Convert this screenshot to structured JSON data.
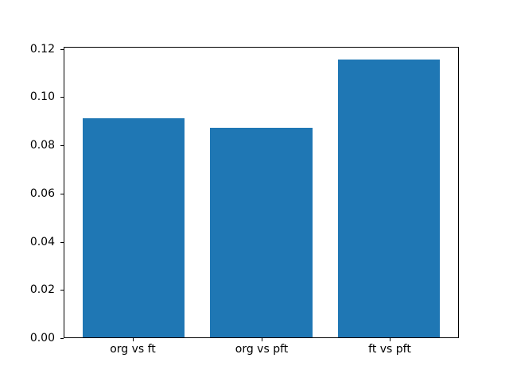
{
  "chart_data": {
    "type": "bar",
    "title": "",
    "xlabel": "",
    "ylabel": "",
    "categories": [
      "org vs ft",
      "org vs pft",
      "ft vs pft"
    ],
    "values": [
      0.0912,
      0.0872,
      0.1156
    ],
    "yticks": [
      0.0,
      0.02,
      0.04,
      0.06,
      0.08,
      0.1,
      0.12
    ],
    "ytick_labels": [
      "0.00",
      "0.02",
      "0.04",
      "0.06",
      "0.08",
      "0.10",
      "0.12"
    ],
    "ylim": [
      0,
      0.1205
    ],
    "grid": false,
    "legend": false,
    "bar_color": "#1f77b4",
    "background_color": "#ffffff",
    "axis_color": "#000000"
  }
}
